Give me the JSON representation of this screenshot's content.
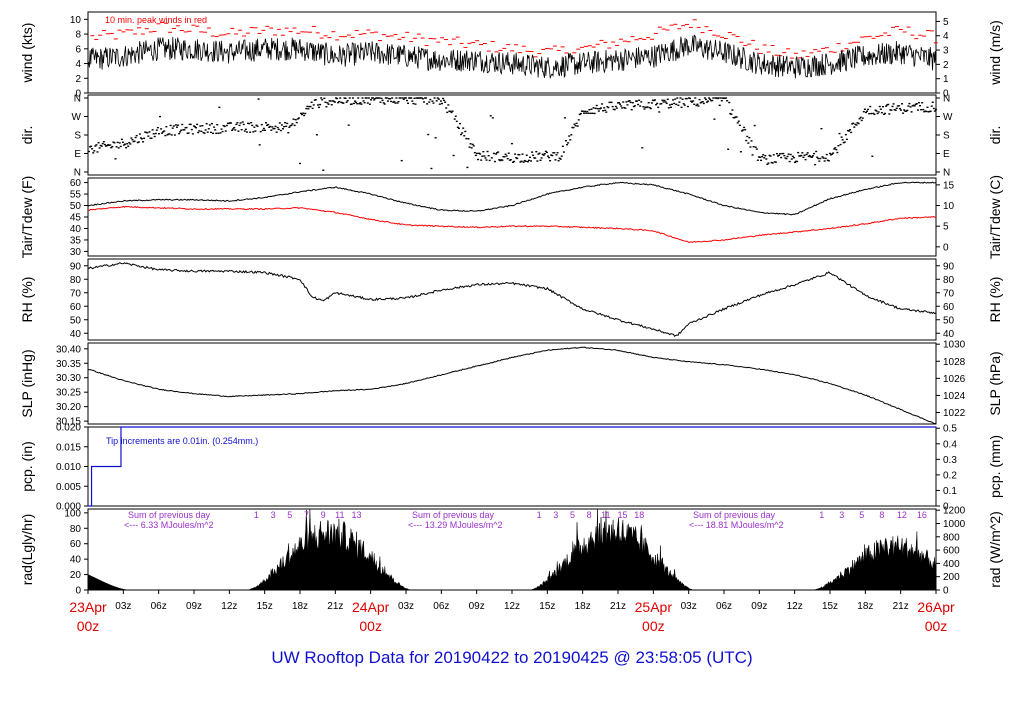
{
  "title": "UW Rooftop Data for 20190422  to  20190425 @ 23:58:05  (UTC)",
  "chart_data": [
    {
      "id": "wind",
      "type": "line",
      "ylabel_left": "wind (kts)",
      "ylabel_right": "wind (m/s)",
      "ylim": [
        0,
        11
      ],
      "yticks": [
        0,
        2,
        4,
        6,
        8,
        10
      ],
      "yticks_right": [
        0,
        1,
        2,
        3,
        4,
        5
      ],
      "annotation": "10 min. peak winds in red",
      "x_hours": [
        0,
        3,
        6,
        9,
        12,
        15,
        18,
        21,
        24,
        27,
        30,
        33,
        36,
        39,
        42,
        45,
        48,
        51,
        54,
        57,
        60,
        63,
        66,
        69,
        72
      ],
      "series": [
        {
          "color": "#000000",
          "values": [
            4.5,
            5,
            6,
            6,
            5.5,
            6,
            6,
            5,
            5.5,
            5,
            4.5,
            4.5,
            4,
            3.5,
            4,
            4.5,
            5,
            6.5,
            5.5,
            4,
            3.5,
            4,
            5,
            5.5,
            4.5
          ]
        },
        {
          "color": "#ff0000",
          "style": "dashes",
          "values": [
            7.5,
            8,
            9,
            8.5,
            8,
            8.5,
            8.5,
            8,
            8,
            7.5,
            7,
            6.5,
            6,
            5.5,
            6,
            7,
            8,
            9.5,
            8,
            6,
            5,
            6,
            7.5,
            8.5,
            7.5
          ]
        }
      ]
    },
    {
      "id": "dir",
      "type": "scatter",
      "ylabel_left": "dir.",
      "ylabel_right": "dir.",
      "ylim": [
        0,
        360
      ],
      "tick_labels": [
        "N",
        "E",
        "S",
        "W",
        "N"
      ],
      "x_hours": [
        0,
        3,
        6,
        9,
        12,
        15,
        17,
        19,
        21,
        24,
        27,
        30,
        33,
        36,
        38,
        40,
        42,
        45,
        48,
        51,
        54,
        57,
        60,
        63,
        66,
        69,
        72
      ],
      "values": [
        110,
        140,
        200,
        210,
        215,
        220,
        215,
        330,
        350,
        355,
        355,
        350,
        80,
        70,
        75,
        80,
        300,
        320,
        330,
        340,
        350,
        60,
        70,
        80,
        300,
        310,
        320
      ]
    },
    {
      "id": "temp",
      "type": "line",
      "ylabel_left": "Tair/Tdew (F)",
      "ylabel_right": "Tair/Tdew (C)",
      "ylim": [
        28,
        62
      ],
      "yticks": [
        30,
        35,
        40,
        45,
        50,
        55,
        60
      ],
      "yticks_right": [
        0,
        5,
        10,
        15
      ],
      "x_hours": [
        0,
        3,
        6,
        9,
        12,
        15,
        18,
        21,
        24,
        27,
        30,
        33,
        36,
        39,
        42,
        45,
        48,
        51,
        54,
        57,
        60,
        63,
        66,
        69,
        72
      ],
      "series": [
        {
          "name": "Tair",
          "color": "#000000",
          "values": [
            50,
            52,
            52.5,
            52.5,
            52,
            53.5,
            56,
            58,
            55,
            51,
            48,
            47.5,
            50,
            55,
            58,
            60,
            59,
            55,
            50,
            47,
            46,
            53,
            57,
            60,
            60
          ]
        },
        {
          "name": "Tdew",
          "color": "#ff0000",
          "values": [
            48,
            49.5,
            49,
            48.5,
            48.5,
            48.5,
            49,
            47,
            44,
            41.5,
            41,
            40.5,
            41,
            41,
            40.5,
            40,
            39,
            34,
            35,
            37,
            38.5,
            40,
            42,
            44.5,
            45
          ]
        }
      ]
    },
    {
      "id": "rh",
      "type": "line",
      "ylabel_left": "RH (%)",
      "ylabel_right": "RH (%)",
      "ylim": [
        35,
        95
      ],
      "yticks": [
        40,
        50,
        60,
        70,
        80,
        90
      ],
      "yticks_right": [
        40,
        50,
        60,
        70,
        80,
        90
      ],
      "x_hours": [
        0,
        3,
        6,
        9,
        12,
        15,
        18,
        19,
        20,
        21,
        24,
        27,
        30,
        33,
        36,
        39,
        42,
        45,
        48,
        50,
        51,
        54,
        57,
        60,
        63,
        66,
        69,
        72
      ],
      "values": [
        88,
        92,
        87,
        86,
        86,
        85,
        80,
        67,
        64,
        70,
        65,
        66,
        72,
        76,
        77,
        73,
        58,
        50,
        43,
        38,
        47,
        58,
        68,
        76,
        85,
        68,
        58,
        55
      ]
    },
    {
      "id": "slp",
      "type": "line",
      "ylabel_left": "SLP (inHg)",
      "ylabel_right": "SLP (hPa)",
      "ylim": [
        30.14,
        30.42
      ],
      "yticks": [
        30.15,
        30.2,
        30.25,
        30.3,
        30.35,
        30.4
      ],
      "ytick_labels": [
        "30.15",
        "30.20",
        "30.25",
        "30.30",
        "30.35",
        "30.40"
      ],
      "yticks_right": [
        1022,
        1024,
        1026,
        1028,
        1030
      ],
      "x_hours": [
        0,
        3,
        6,
        9,
        12,
        15,
        18,
        21,
        24,
        27,
        30,
        33,
        36,
        39,
        42,
        45,
        48,
        51,
        54,
        57,
        60,
        63,
        66,
        69,
        72
      ],
      "values": [
        30.33,
        30.29,
        30.26,
        30.245,
        30.235,
        30.24,
        30.245,
        30.255,
        30.26,
        30.28,
        30.31,
        30.34,
        30.37,
        30.395,
        30.405,
        30.395,
        30.37,
        30.355,
        30.345,
        30.33,
        30.31,
        30.28,
        30.24,
        30.19,
        30.14
      ]
    },
    {
      "id": "pcp",
      "type": "step",
      "ylabel_left": "pcp. (in)",
      "ylabel_right": "pcp. (mm)",
      "ylim": [
        0,
        0.02
      ],
      "yticks": [
        0,
        0.005,
        0.01,
        0.015,
        0.02
      ],
      "ytick_labels": [
        "0.000",
        "0.005",
        "0.010",
        "0.015",
        "0.020"
      ],
      "yticks_right": [
        0,
        0.1,
        0.2,
        0.3,
        0.4,
        0.5
      ],
      "annotation": "Tip increments are 0.01in. (0.254mm.)",
      "x_hours": [
        0,
        0.3,
        2.8,
        72
      ],
      "values": [
        0,
        0.01,
        0.02,
        0.02
      ]
    },
    {
      "id": "rad",
      "type": "area",
      "ylabel_left": "rad(Lgly/hr)",
      "ylabel_right": "rad (W/m^2)",
      "ylim": [
        0,
        105
      ],
      "yticks": [
        0,
        20,
        40,
        60,
        80,
        100
      ],
      "yticks_right": [
        0,
        200,
        400,
        600,
        800,
        1000,
        1200
      ],
      "days": [
        {
          "rise": 13.5,
          "set": 27.5,
          "peak": 95,
          "sun_hours": [
            "1",
            "3",
            "5",
            "7",
            "9",
            "11",
            "13"
          ],
          "summary": [
            "Sum of previous day",
            "<--- 6.33 MJoules/m^2"
          ]
        },
        {
          "rise": 37.5,
          "set": 51.5,
          "peak": 98,
          "sun_hours": [
            "1",
            "3",
            "5",
            "8",
            "11",
            "15",
            "18"
          ],
          "summary": [
            "Sum of previous day",
            "<--- 13.29 MJoules/m^2"
          ]
        },
        {
          "rise": 61.5,
          "set": 75.5,
          "peak": 72,
          "sun_hours": [
            "1",
            "3",
            "5",
            "8",
            "12",
            "16"
          ],
          "summary": [
            "Sum of previous day",
            "<--- 18.81 MJoules/m^2"
          ]
        }
      ]
    }
  ],
  "x_axis": {
    "hour_labels": [
      "03z",
      "06z",
      "09z",
      "12z",
      "15z",
      "18z",
      "21z",
      "03z",
      "06z",
      "09z",
      "12z",
      "15z",
      "18z",
      "21z",
      "03z",
      "06z",
      "09z",
      "12z",
      "15z",
      "18z",
      "21z"
    ],
    "hour_values": [
      3,
      6,
      9,
      12,
      15,
      18,
      21,
      27,
      30,
      33,
      36,
      39,
      42,
      45,
      51,
      54,
      57,
      60,
      63,
      66,
      69
    ],
    "day_labels": [
      {
        "date": "23Apr",
        "time": "00z",
        "hour": 0
      },
      {
        "date": "24Apr",
        "time": "00z",
        "hour": 24
      },
      {
        "date": "25Apr",
        "time": "00z",
        "hour": 48
      },
      {
        "date": "26Apr",
        "time": "00z",
        "hour": 72
      }
    ]
  }
}
